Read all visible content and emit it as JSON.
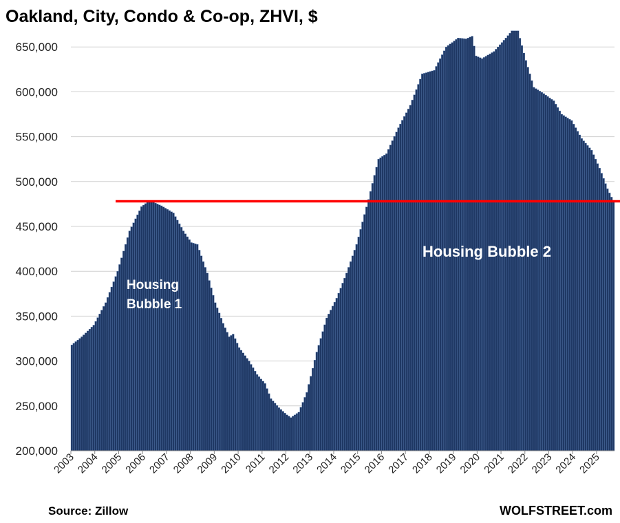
{
  "chart_data": {
    "type": "bar",
    "title": "Oakland, City, Condo & Co-op, ZHVI, $",
    "xlabel": "",
    "ylabel": "",
    "ylim": [
      200000,
      680000
    ],
    "y_ticks": [
      "200,000",
      "250,000",
      "300,000",
      "350,000",
      "400,000",
      "450,000",
      "500,000",
      "550,000",
      "600,000",
      "650,000"
    ],
    "x_ticks": [
      "2003",
      "2004",
      "2005",
      "2006",
      "2007",
      "2008",
      "2009",
      "2010",
      "2011",
      "2012",
      "2013",
      "2014",
      "2015",
      "2016",
      "2017",
      "2018",
      "2019",
      "2020",
      "2021",
      "2022",
      "2023",
      "2024",
      "2025"
    ],
    "x_start": "2003-01",
    "x_end": "2025-09",
    "grid": true,
    "bar_color": "#1f3864",
    "bar_edge_color": "#5b7fb5",
    "anchors": [
      [
        "2003-01",
        318000
      ],
      [
        "2003-06",
        327000
      ],
      [
        "2003-12",
        340000
      ],
      [
        "2004-06",
        365000
      ],
      [
        "2004-12",
        400000
      ],
      [
        "2005-06",
        445000
      ],
      [
        "2005-12",
        472000
      ],
      [
        "2006-04",
        479000
      ],
      [
        "2006-10",
        473000
      ],
      [
        "2007-04",
        465000
      ],
      [
        "2007-09",
        445000
      ],
      [
        "2008-01",
        432000
      ],
      [
        "2008-04",
        430000
      ],
      [
        "2008-09",
        398000
      ],
      [
        "2009-01",
        365000
      ],
      [
        "2009-05",
        342000
      ],
      [
        "2009-08",
        327000
      ],
      [
        "2009-10",
        330000
      ],
      [
        "2010-01",
        315000
      ],
      [
        "2010-06",
        300000
      ],
      [
        "2010-10",
        285000
      ],
      [
        "2011-02",
        275000
      ],
      [
        "2011-05",
        258000
      ],
      [
        "2011-09",
        248000
      ],
      [
        "2012-01",
        240000
      ],
      [
        "2012-03",
        237000
      ],
      [
        "2012-07",
        243000
      ],
      [
        "2012-11",
        265000
      ],
      [
        "2013-04",
        310000
      ],
      [
        "2013-09",
        348000
      ],
      [
        "2014-02",
        370000
      ],
      [
        "2014-07",
        398000
      ],
      [
        "2014-12",
        430000
      ],
      [
        "2015-06",
        480000
      ],
      [
        "2015-11",
        525000
      ],
      [
        "2016-03",
        531000
      ],
      [
        "2016-09",
        560000
      ],
      [
        "2017-03",
        585000
      ],
      [
        "2017-09",
        620000
      ],
      [
        "2018-03",
        624000
      ],
      [
        "2018-09",
        650000
      ],
      [
        "2019-03",
        660000
      ],
      [
        "2019-07",
        659000
      ],
      [
        "2019-10",
        662000
      ],
      [
        "2019-12",
        640000
      ],
      [
        "2020-03",
        637000
      ],
      [
        "2020-09",
        645000
      ],
      [
        "2021-03",
        660000
      ],
      [
        "2021-06",
        668000
      ],
      [
        "2021-09",
        668000
      ],
      [
        "2022-01",
        635000
      ],
      [
        "2022-05",
        605000
      ],
      [
        "2022-10",
        598000
      ],
      [
        "2023-03",
        590000
      ],
      [
        "2023-07",
        575000
      ],
      [
        "2023-12",
        568000
      ],
      [
        "2024-05",
        548000
      ],
      [
        "2024-10",
        535000
      ],
      [
        "2025-02",
        515000
      ],
      [
        "2025-06",
        492000
      ],
      [
        "2025-09",
        478000
      ]
    ],
    "reference_line": {
      "value": 478000,
      "color": "#ff0000"
    },
    "annotations": {
      "bubble1_line1": "Housing",
      "bubble1_line2": "Bubble 1",
      "bubble2": "Housing Bubble 2"
    },
    "source": "Source: Zillow",
    "brand": "WOLFSTREET.com"
  }
}
